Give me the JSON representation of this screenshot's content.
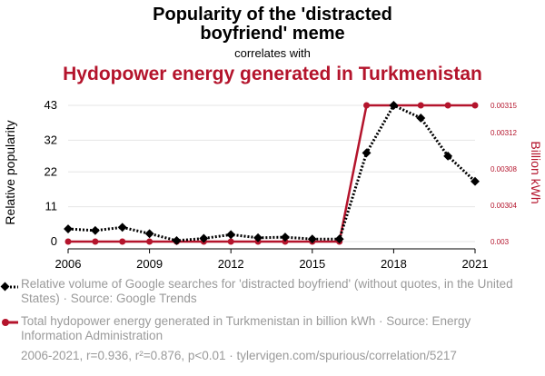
{
  "header": {
    "title_line1": "Popularity of the 'distracted",
    "title_line2": "boyfriend' meme",
    "correlates": "correlates with",
    "title2": "Hydopower energy generated in Turkmenistan"
  },
  "colors": {
    "series1": "#000000",
    "series2": "#b4142c",
    "muted": "#9a9a9a"
  },
  "chart_data": {
    "type": "line",
    "x": [
      2006,
      2007,
      2008,
      2009,
      2010,
      2011,
      2012,
      2013,
      2014,
      2015,
      2016,
      2017,
      2018,
      2019,
      2020,
      2021
    ],
    "series": [
      {
        "name": "Relative volume of Google searches for 'distracted boyfriend'",
        "axis": "left",
        "values": [
          4,
          3.5,
          4.5,
          2.5,
          0.3,
          1,
          2.2,
          1.2,
          1.4,
          0.8,
          0.8,
          28,
          43,
          39,
          27,
          19
        ]
      },
      {
        "name": "Total hydopower energy generated in Turkmenistan in billion kWh",
        "axis": "right",
        "values": [
          0.003,
          0.003,
          0.003,
          0.003,
          0.003,
          0.003,
          0.003,
          0.003,
          0.003,
          0.003,
          0.003,
          0.00315,
          0.00315,
          0.00315,
          0.00315,
          0.00315
        ]
      }
    ],
    "xlabel": "",
    "ylabel_left": "Relative popularity",
    "ylabel_right": "Billion kWh",
    "xlim": [
      2006,
      2021
    ],
    "ylim_left": [
      0,
      43
    ],
    "ylim_right": [
      0.003,
      0.00315
    ],
    "x_ticks": [
      "2006",
      "2009",
      "2012",
      "2015",
      "2018",
      "2021"
    ],
    "y_ticks_left": [
      "0",
      "11",
      "22",
      "32",
      "43"
    ],
    "y_ticks_right": [
      "0.003",
      "0.00304",
      "0.00308",
      "0.00312",
      "0.00315"
    ]
  },
  "legend": {
    "item1": "Relative volume of Google searches for 'distracted boyfriend' (without quotes, in the United States) · Source: Google Trends",
    "item2": "Total hydopower energy generated in Turkmenistan in billion kWh · Source: Energy Information Administration"
  },
  "footer": "2006-2021, r=0.936, r²=0.876, p<0.01 · tylervigen.com/spurious/correlation/5217"
}
